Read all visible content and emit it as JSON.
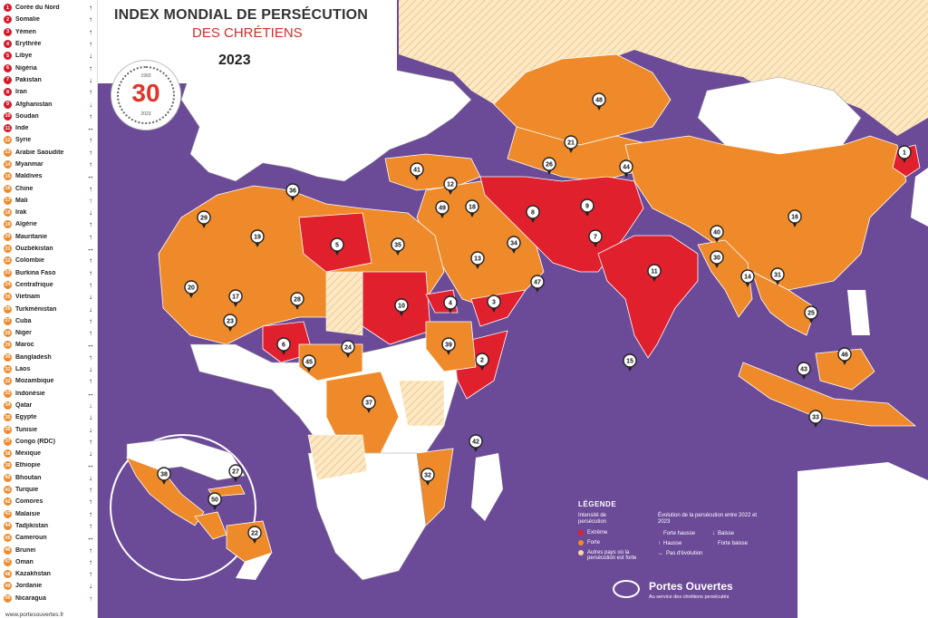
{
  "title": {
    "line1": "INDEX MONDIAL DE PERSÉCUTION",
    "line2": "DES CHRÉTIENS",
    "year": "2023"
  },
  "badge": {
    "number": "30",
    "year_start": "1993",
    "year_end": "2023",
    "ring_text": "ANS DE L'INDEX MONDIAL DE PERSÉCUTION DES CHRÉTIENS"
  },
  "colors": {
    "extreme": "#e0202c",
    "forte": "#ef8a2a",
    "other": "#f6d9a0",
    "ocean": "#6b4a98",
    "land": "#ffffff"
  },
  "ranking": [
    {
      "rank": "1",
      "name": "Corée du Nord",
      "trend": "up",
      "level": "extreme"
    },
    {
      "rank": "2",
      "name": "Somalie",
      "trend": "up",
      "level": "extreme"
    },
    {
      "rank": "3",
      "name": "Yémen",
      "trend": "up",
      "level": "extreme"
    },
    {
      "rank": "4",
      "name": "Érythrée",
      "trend": "up",
      "level": "extreme"
    },
    {
      "rank": "5",
      "name": "Libye",
      "trend": "down",
      "level": "extreme"
    },
    {
      "rank": "6",
      "name": "Nigéria",
      "trend": "up",
      "level": "extreme"
    },
    {
      "rank": "7",
      "name": "Pakistan",
      "trend": "down",
      "level": "extreme"
    },
    {
      "rank": "8",
      "name": "Iran",
      "trend": "up",
      "level": "extreme"
    },
    {
      "rank": "9",
      "name": "Afghanistan",
      "trend": "strong-down",
      "level": "extreme"
    },
    {
      "rank": "10",
      "name": "Soudan",
      "trend": "up",
      "level": "extreme"
    },
    {
      "rank": "11",
      "name": "Inde",
      "trend": "same",
      "level": "extreme"
    },
    {
      "rank": "12",
      "name": "Syrie",
      "trend": "up",
      "level": "forte"
    },
    {
      "rank": "13",
      "name": "Arabie Saoudite",
      "trend": "up",
      "level": "forte"
    },
    {
      "rank": "14",
      "name": "Myanmar",
      "trend": "up",
      "level": "forte"
    },
    {
      "rank": "15",
      "name": "Maldives",
      "trend": "same",
      "level": "forte"
    },
    {
      "rank": "16",
      "name": "Chine",
      "trend": "up",
      "level": "forte"
    },
    {
      "rank": "17",
      "name": "Mali",
      "trend": "strong-up",
      "level": "forte"
    },
    {
      "rank": "18",
      "name": "Irak",
      "trend": "down",
      "level": "forte"
    },
    {
      "rank": "19",
      "name": "Algérie",
      "trend": "up",
      "level": "forte"
    },
    {
      "rank": "20",
      "name": "Mauritanie",
      "trend": "up",
      "level": "forte"
    },
    {
      "rank": "21",
      "name": "Ouzbékistan",
      "trend": "same",
      "level": "forte"
    },
    {
      "rank": "22",
      "name": "Colombie",
      "trend": "up",
      "level": "forte"
    },
    {
      "rank": "23",
      "name": "Burkina Faso",
      "trend": "up",
      "level": "forte"
    },
    {
      "rank": "24",
      "name": "Centrafrique",
      "trend": "up",
      "level": "forte"
    },
    {
      "rank": "25",
      "name": "Vietnam",
      "trend": "down",
      "level": "forte"
    },
    {
      "rank": "26",
      "name": "Turkménistan",
      "trend": "down",
      "level": "forte"
    },
    {
      "rank": "27",
      "name": "Cuba",
      "trend": "up",
      "level": "forte"
    },
    {
      "rank": "28",
      "name": "Niger",
      "trend": "up",
      "level": "forte"
    },
    {
      "rank": "29",
      "name": "Maroc",
      "trend": "same",
      "level": "forte"
    },
    {
      "rank": "30",
      "name": "Bangladesh",
      "trend": "up",
      "level": "forte"
    },
    {
      "rank": "31",
      "name": "Laos",
      "trend": "down",
      "level": "forte"
    },
    {
      "rank": "32",
      "name": "Mozambique",
      "trend": "up",
      "level": "forte"
    },
    {
      "rank": "33",
      "name": "Indonésie",
      "trend": "same",
      "level": "forte"
    },
    {
      "rank": "34",
      "name": "Qatar",
      "trend": "strong-down",
      "level": "forte"
    },
    {
      "rank": "35",
      "name": "Égypte",
      "trend": "down",
      "level": "forte"
    },
    {
      "rank": "36",
      "name": "Tunisie",
      "trend": "down",
      "level": "forte"
    },
    {
      "rank": "37",
      "name": "Congo (RDC)",
      "trend": "up",
      "level": "forte"
    },
    {
      "rank": "38",
      "name": "Mexique",
      "trend": "down",
      "level": "forte"
    },
    {
      "rank": "39",
      "name": "Éthiopie",
      "trend": "same",
      "level": "forte"
    },
    {
      "rank": "40",
      "name": "Bhoutan",
      "trend": "down",
      "level": "forte"
    },
    {
      "rank": "41",
      "name": "Turquie",
      "trend": "up",
      "level": "forte"
    },
    {
      "rank": "42",
      "name": "Comores",
      "trend": "up",
      "level": "forte"
    },
    {
      "rank": "43",
      "name": "Malaisie",
      "trend": "up",
      "level": "forte"
    },
    {
      "rank": "44",
      "name": "Tadjikistan",
      "trend": "up",
      "level": "forte"
    },
    {
      "rank": "45",
      "name": "Cameroun",
      "trend": "same",
      "level": "forte"
    },
    {
      "rank": "46",
      "name": "Brunei",
      "trend": "up",
      "level": "forte"
    },
    {
      "rank": "47",
      "name": "Oman",
      "trend": "up",
      "level": "forte"
    },
    {
      "rank": "48",
      "name": "Kazakhstan",
      "trend": "up",
      "level": "forte"
    },
    {
      "rank": "49",
      "name": "Jordanie",
      "trend": "down",
      "level": "forte"
    },
    {
      "rank": "50",
      "name": "Nicaragua",
      "trend": "strong-up",
      "level": "forte"
    }
  ],
  "website": "www.portesouvertes.fr",
  "legend": {
    "title": "LÉGENDE",
    "intensity_title": "Intensité de persécution",
    "intensity": [
      {
        "label": "Extrême",
        "color": "#e0202c"
      },
      {
        "label": "Forte",
        "color": "#ef8a2a"
      },
      {
        "label": "Autres pays où la persécution est forte",
        "color": "#f6d9a0"
      }
    ],
    "evolution_title": "Évolution de la persécution entre 2022 et 2023",
    "evolution": [
      {
        "label": "Forte hausse",
        "icon": "strong-up-arrow-icon"
      },
      {
        "label": "Baisse",
        "icon": "down-arrow-icon"
      },
      {
        "label": "Hausse",
        "icon": "up-arrow-icon"
      },
      {
        "label": "Forte baisse",
        "icon": "strong-down-arrow-icon"
      },
      {
        "label": "Pas d'évolution",
        "icon": "same-arrow-icon"
      }
    ]
  },
  "brand": {
    "name": "Portes Ouvertes",
    "tagline": "Au service des chrétiens persécutés"
  }
}
